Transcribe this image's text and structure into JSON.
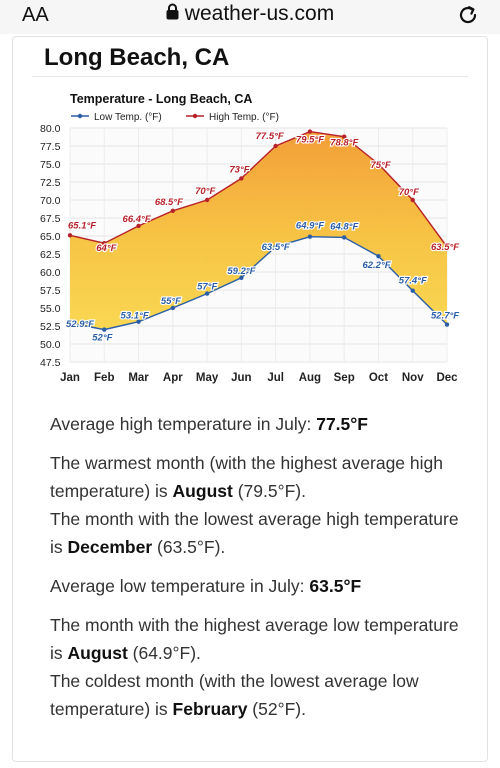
{
  "browser": {
    "text_size_label": "AA",
    "url": "weather-us.com"
  },
  "page": {
    "city_title": "Long Beach, CA"
  },
  "chart_data": {
    "type": "line",
    "title": "Temperature - Long Beach, CA",
    "categories": [
      "Jan",
      "Feb",
      "Mar",
      "Apr",
      "May",
      "Jun",
      "Jul",
      "Aug",
      "Sep",
      "Oct",
      "Nov",
      "Dec"
    ],
    "series": [
      {
        "name": "Low Temp. (°F)",
        "color": "#2a5fa8",
        "values": [
          52.9,
          52,
          53.1,
          55,
          57,
          59.2,
          63.5,
          64.9,
          64.8,
          62.2,
          57.4,
          52.7
        ],
        "labels": [
          "52.9°F",
          "52°F",
          "53.1°F",
          "55°F",
          "57°F",
          "59.2°F",
          "63.5°F",
          "64.9°F",
          "64.8°F",
          "62.2°F",
          "57.4°F",
          "52.7°F"
        ]
      },
      {
        "name": "High Temp. (°F)",
        "color": "#b8212a",
        "values": [
          65.1,
          64,
          66.4,
          68.5,
          70,
          73,
          77.5,
          79.5,
          78.8,
          75,
          70,
          63.5
        ],
        "labels": [
          "65.1°F",
          "64°F",
          "66.4°F",
          "68.5°F",
          "70°F",
          "73°F",
          "77.5°F",
          "79.5°F",
          "78.8°F",
          "75°F",
          "70°F",
          "63.5°F"
        ]
      }
    ],
    "yticks": [
      "80.0",
      "77.5",
      "75.0",
      "72.5",
      "70.0",
      "67.5",
      "65.0",
      "62.5",
      "60.0",
      "57.5",
      "55.0",
      "52.5",
      "50.0",
      "47.5"
    ],
    "ylim": [
      47.5,
      80
    ],
    "grid": true,
    "legend": "top-left"
  },
  "description": {
    "p1_text": "Average high temperature in July: ",
    "p1_bold": "77.5°F",
    "p2_a": "The warmest month (with the highest average high temperature) is ",
    "p2_bold": "August",
    "p2_b": " (79.5°F).",
    "p2_c": "The month with the lowest average high temperature is ",
    "p2_bold2": "December",
    "p2_d": " (63.5°F).",
    "p3_text": "Average low temperature in July: ",
    "p3_bold": "63.5°F",
    "p4_a": "The month with the highest average low temperature is ",
    "p4_bold": "August",
    "p4_b": " (64.9°F).",
    "p4_c": "The coldest month (with the lowest average low temperature) is ",
    "p4_bold2": "February",
    "p4_d": " (52°F)."
  }
}
